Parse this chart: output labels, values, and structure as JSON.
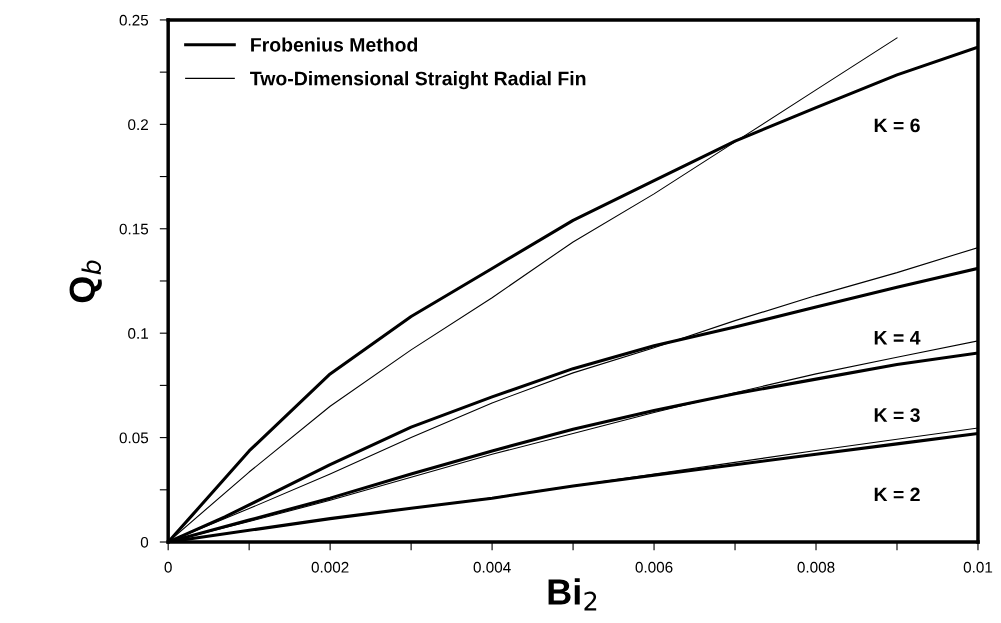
{
  "chart_data": {
    "type": "line",
    "xlabel": "Bi$_{2}$",
    "ylabel": "Q$_{b}$",
    "xlim": [
      0,
      0.01
    ],
    "ylim": [
      0,
      0.25
    ],
    "xticks": [
      0,
      {
        "value": 0.001,
        "label": null
      },
      0.002,
      {
        "value": 0.003,
        "label": null
      },
      0.004,
      {
        "value": 0.005,
        "label": null
      },
      0.006,
      {
        "value": 0.007,
        "label": null
      },
      0.008,
      {
        "value": 0.009,
        "label": null
      },
      0.01
    ],
    "yticks": [
      0,
      {
        "value": 0.025,
        "label": null
      },
      0.05,
      {
        "value": 0.075,
        "label": null
      },
      0.1,
      {
        "value": 0.125,
        "label": null
      },
      0.15,
      {
        "value": 0.175,
        "label": null
      },
      0.2,
      {
        "value": 0.225,
        "label": null
      },
      0.25
    ],
    "grid": false,
    "legend": "top left",
    "marker": "none",
    "line_style": "solid",
    "series": [
      {
        "name": "Frobenius Method",
        "color": "#000000",
        "x": [
          0,
          0.0003,
          0.001,
          0.002,
          0.003,
          0.004,
          0.005,
          0.006,
          0.007,
          0.008,
          0.009,
          0.01
        ],
        "values": [
          0,
          0.013,
          0.0436,
          0.0805,
          0.108,
          0.131,
          0.154,
          0.173,
          0.192,
          0.208,
          0.2237,
          0.237
        ]
      },
      {
        "name": "Two-Dimensional Straight Radial Fin",
        "color": "#000000",
        "x": [
          0,
          0.001,
          0.002,
          0.003,
          0.004,
          0.005,
          0.006,
          0.007,
          0.008,
          0.009
        ],
        "values": [
          0,
          0.0335,
          0.065,
          0.092,
          0.117,
          0.1437,
          0.1667,
          0.1916,
          0.2165,
          0.2414
        ]
      },
      {
        "color": "#000000",
        "x": [
          0,
          0.0007,
          0.002,
          0.003,
          0.004,
          0.005,
          0.006,
          0.007,
          0.008,
          0.009,
          0.01
        ],
        "values": [
          0,
          0.012,
          0.0371,
          0.055,
          0.0695,
          0.083,
          0.094,
          0.103,
          0.1125,
          0.122,
          0.131
        ]
      },
      {
        "color": "#000000",
        "x": [
          0,
          0.001,
          0.002,
          0.003,
          0.004,
          0.005,
          0.006,
          0.007,
          0.008,
          0.009,
          0.01
        ],
        "values": [
          0,
          0.016,
          0.0326,
          0.05,
          0.0666,
          0.081,
          0.093,
          0.106,
          0.118,
          0.129,
          0.141
        ]
      },
      {
        "color": "#000000",
        "x": [
          0,
          0.001,
          0.002,
          0.003,
          0.004,
          0.005,
          0.006,
          0.007,
          0.008,
          0.009,
          0.01
        ],
        "values": [
          0,
          0.0105,
          0.021,
          0.0326,
          0.0436,
          0.054,
          0.063,
          0.071,
          0.078,
          0.085,
          0.0905
        ]
      },
      {
        "color": "#000000",
        "x": [
          0,
          0.001,
          0.002,
          0.003,
          0.004,
          0.005,
          0.006,
          0.007,
          0.008,
          0.009,
          0.01
        ],
        "values": [
          0,
          0.0098,
          0.02,
          0.031,
          0.042,
          0.052,
          0.062,
          0.0715,
          0.0805,
          0.0885,
          0.0963
        ]
      },
      {
        "color": "#000000",
        "x": [
          0,
          0.002,
          0.003,
          0.004,
          0.005,
          0.006,
          0.007,
          0.008,
          0.009,
          0.01
        ],
        "values": [
          0,
          0.0112,
          0.0162,
          0.021,
          0.0268,
          0.032,
          0.037,
          0.042,
          0.047,
          0.052
        ]
      },
      {
        "color": "#000000",
        "x": [
          0,
          0.002,
          0.004,
          0.006,
          0.008,
          0.01
        ],
        "values": [
          0,
          0.011,
          0.0212,
          0.0325,
          0.0438,
          0.0546
        ]
      }
    ],
    "annotations": [
      "K = 6",
      "K = 4",
      "K = 3",
      "K = 2"
    ]
  }
}
